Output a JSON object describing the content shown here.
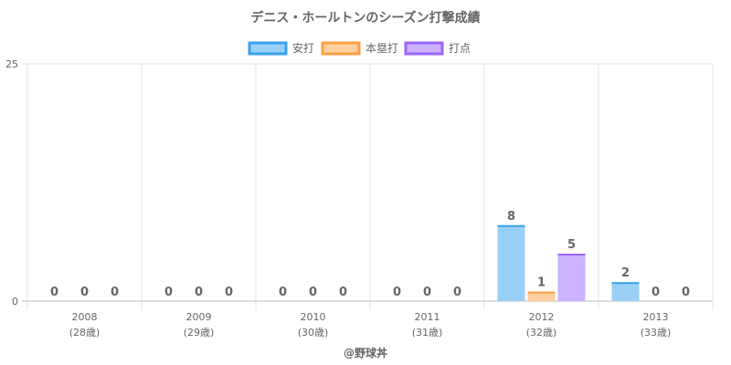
{
  "chart_data": {
    "type": "bar",
    "title": "デニス・ホールトンのシーズン打撃成績",
    "categories": [
      "2008",
      "2009",
      "2010",
      "2011",
      "2012",
      "2013"
    ],
    "category_sublabels": [
      "(28歳)",
      "(29歳)",
      "(30歳)",
      "(31歳)",
      "(32歳)",
      "(33歳)"
    ],
    "series": [
      {
        "name": "安打",
        "values": [
          0,
          0,
          0,
          0,
          8,
          2
        ],
        "fill": "#9ad0f5",
        "stroke": "#36a2eb"
      },
      {
        "name": "本塁打",
        "values": [
          0,
          0,
          0,
          0,
          1,
          0
        ],
        "fill": "#ffcf9f",
        "stroke": "#ff9f40"
      },
      {
        "name": "打点",
        "values": [
          0,
          0,
          0,
          0,
          5,
          0
        ],
        "fill": "#ccb2ff",
        "stroke": "#9966ff"
      }
    ],
    "ylim": [
      0,
      25
    ],
    "yticks": [
      "0",
      "25"
    ],
    "grid": true,
    "legend_position": "top"
  },
  "footer": {
    "text": "@野球丼"
  }
}
